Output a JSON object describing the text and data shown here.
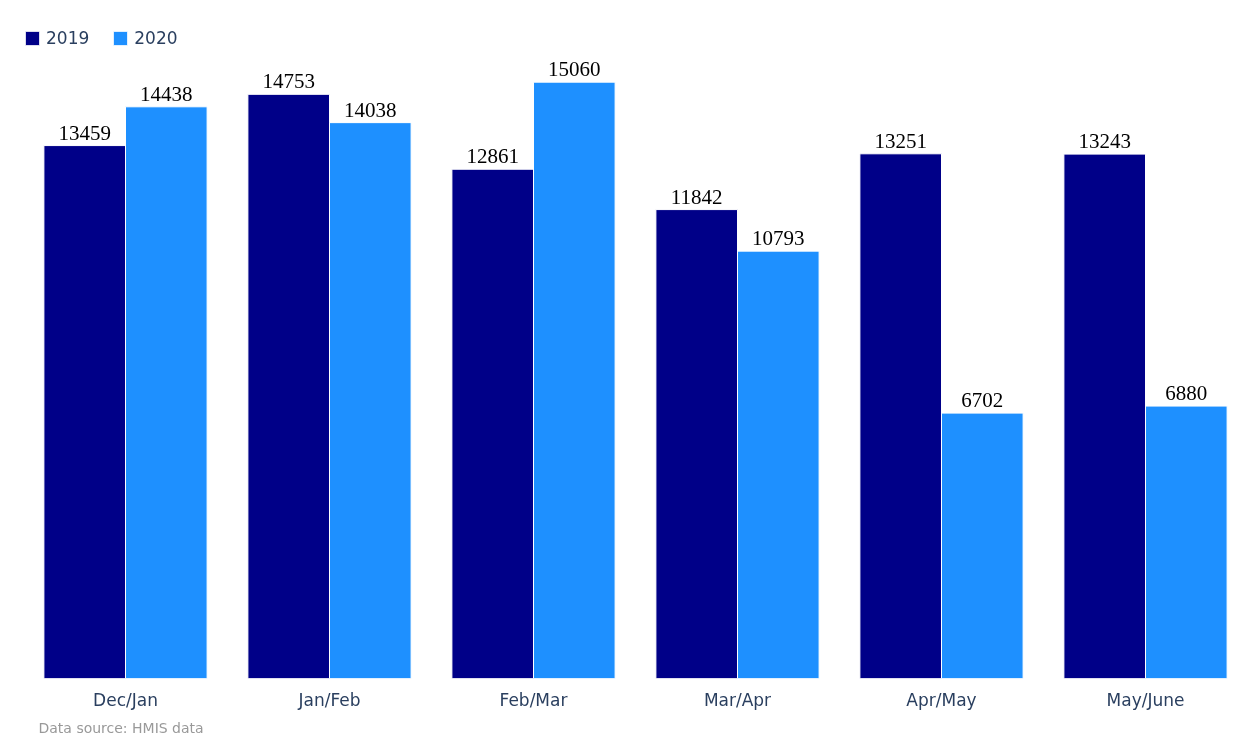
{
  "chart_data": {
    "type": "bar",
    "categories": [
      "Dec/Jan",
      "Jan/Feb",
      "Feb/Mar",
      "Mar/Apr",
      "Apr/May",
      "May/June"
    ],
    "series": [
      {
        "name": "2019",
        "color": "#000088",
        "values": [
          13459,
          14753,
          12861,
          11842,
          13251,
          13243
        ]
      },
      {
        "name": "2020",
        "color": "#1e90ff",
        "values": [
          14438,
          14038,
          15060,
          10793,
          6702,
          6880
        ]
      }
    ],
    "data_labels": true,
    "legend": "top left",
    "grid": false,
    "tick_labels": "x",
    "annotations": [
      "Data source: HMIS data"
    ]
  }
}
